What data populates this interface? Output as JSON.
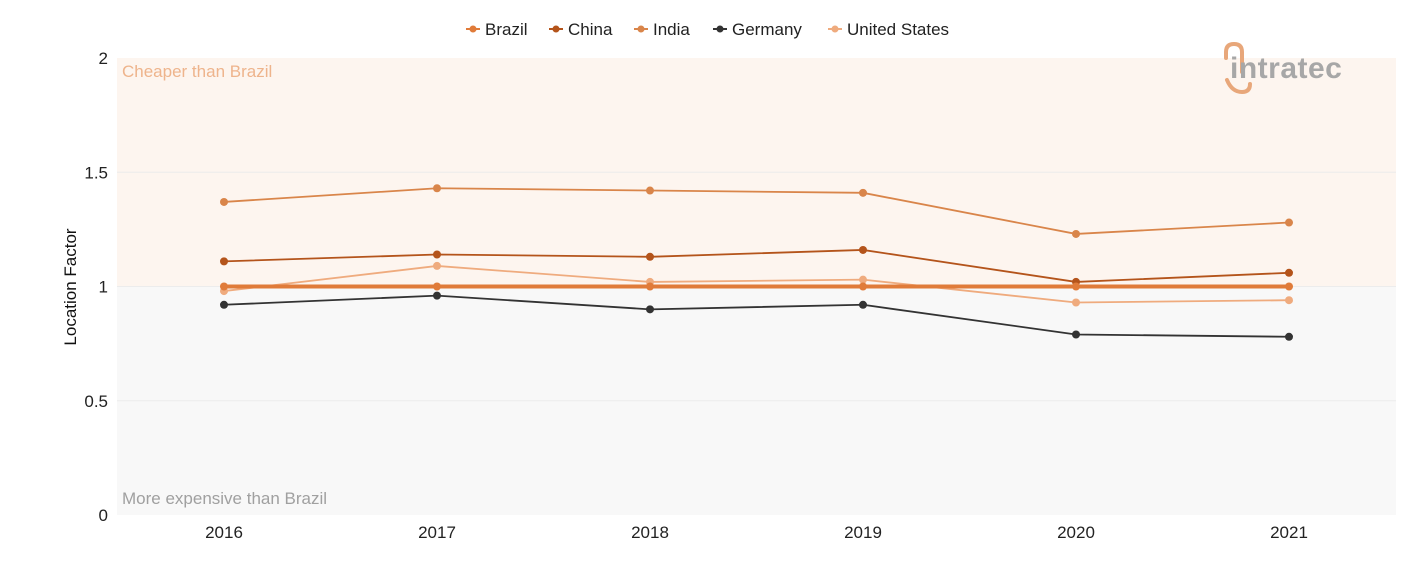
{
  "chart_data": {
    "type": "line",
    "categories": [
      "2016",
      "2017",
      "2018",
      "2019",
      "2020",
      "2021"
    ],
    "ylabel": "Location Factor",
    "ylim": [
      0,
      2
    ],
    "yticks": [
      0,
      0.5,
      1,
      1.5,
      2
    ],
    "ytick_labels": [
      "0",
      "0.5",
      "1",
      "1.5",
      "2"
    ],
    "legend_position": "top-center",
    "regions": [
      {
        "label": "Cheaper than Brazil",
        "from": 1,
        "to": 2,
        "color": "#fdf5ef",
        "label_color": "#eeb48c"
      },
      {
        "label": "More expensive than Brazil",
        "from": 0,
        "to": 1,
        "color": "#f8f8f8",
        "label_color": "#a0a0a0"
      }
    ],
    "series": [
      {
        "name": "Brazil",
        "color": "#e07b39",
        "values": [
          1.0,
          1.0,
          1.0,
          1.0,
          1.0,
          1.0
        ]
      },
      {
        "name": "China",
        "color": "#b4541b",
        "values": [
          1.11,
          1.14,
          1.13,
          1.16,
          1.02,
          1.06
        ]
      },
      {
        "name": "India",
        "color": "#d9854a",
        "values": [
          1.37,
          1.43,
          1.42,
          1.41,
          1.23,
          1.28
        ]
      },
      {
        "name": "Germany",
        "color": "#333333",
        "values": [
          0.92,
          0.96,
          0.9,
          0.92,
          0.79,
          0.78
        ]
      },
      {
        "name": "United States",
        "color": "#efab7e",
        "values": [
          0.98,
          1.09,
          1.02,
          1.03,
          0.93,
          0.94
        ]
      }
    ]
  },
  "logo": {
    "text": "intratec",
    "icon": "intratec-logo-icon"
  }
}
